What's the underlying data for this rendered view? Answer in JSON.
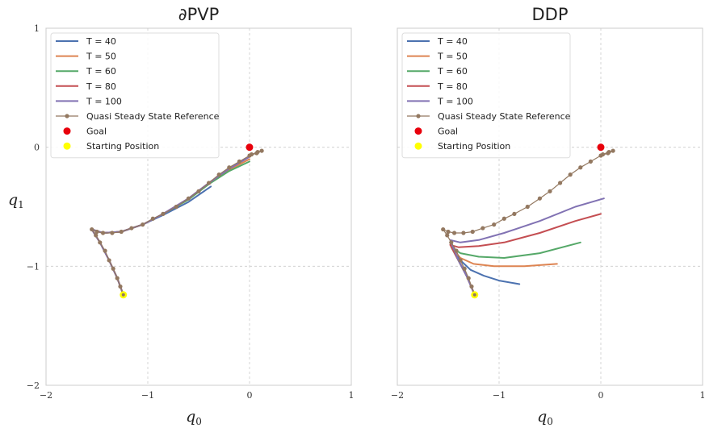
{
  "chart_data": [
    {
      "type": "line",
      "title": "∂PVP",
      "xlabel": "q",
      "xlabel_sub": "0",
      "ylabel": "q",
      "ylabel_sub": "1",
      "xlim": [
        -2,
        1
      ],
      "ylim": [
        -2,
        1
      ],
      "xticks": [
        -2,
        -1,
        0,
        1
      ],
      "yticks": [
        -2,
        -1,
        0,
        1
      ],
      "xtick_labels": [
        "−2",
        "−1",
        "0",
        "1"
      ],
      "ytick_labels": [
        "−2",
        "−1",
        "0",
        "1"
      ],
      "grid": true,
      "legend_position": "top-left",
      "series": [
        {
          "name": "T = 40",
          "color": "#4c72b0",
          "x": [
            -1.24,
            -1.3,
            -1.38,
            -1.47,
            -1.55,
            -1.44,
            -1.26,
            -1.05,
            -0.85,
            -0.6,
            -0.38
          ],
          "y": [
            -1.24,
            -1.1,
            -0.95,
            -0.8,
            -0.69,
            -0.72,
            -0.71,
            -0.65,
            -0.57,
            -0.46,
            -0.33
          ]
        },
        {
          "name": "T = 50",
          "color": "#dd8452",
          "x": [
            -1.24,
            -1.3,
            -1.38,
            -1.47,
            -1.55,
            -1.44,
            -1.26,
            -1.05,
            -0.85,
            -0.6,
            -0.4,
            -0.2,
            0.0
          ],
          "y": [
            -1.24,
            -1.1,
            -0.95,
            -0.8,
            -0.69,
            -0.72,
            -0.71,
            -0.65,
            -0.56,
            -0.44,
            -0.31,
            -0.19,
            -0.1
          ]
        },
        {
          "name": "T = 60",
          "color": "#55a868",
          "x": [
            -1.24,
            -1.3,
            -1.38,
            -1.47,
            -1.55,
            -1.44,
            -1.26,
            -1.05,
            -0.85,
            -0.6,
            -0.4,
            -0.2,
            0.0
          ],
          "y": [
            -1.24,
            -1.1,
            -0.95,
            -0.8,
            -0.69,
            -0.72,
            -0.71,
            -0.65,
            -0.56,
            -0.44,
            -0.31,
            -0.2,
            -0.12
          ]
        },
        {
          "name": "T = 80",
          "color": "#c44e52",
          "x": [
            -1.24,
            -1.3,
            -1.38,
            -1.47,
            -1.55,
            -1.44,
            -1.26,
            -1.05,
            -0.85,
            -0.6,
            -0.4,
            -0.2,
            0.0
          ],
          "y": [
            -1.24,
            -1.1,
            -0.95,
            -0.8,
            -0.69,
            -0.72,
            -0.71,
            -0.65,
            -0.56,
            -0.43,
            -0.3,
            -0.18,
            -0.08
          ]
        },
        {
          "name": "T = 100",
          "color": "#8172b3",
          "x": [
            -1.24,
            -1.3,
            -1.38,
            -1.47,
            -1.55,
            -1.44,
            -1.26,
            -1.05,
            -0.85,
            -0.6,
            -0.4,
            -0.2,
            0.0
          ],
          "y": [
            -1.24,
            -1.1,
            -0.95,
            -0.8,
            -0.69,
            -0.72,
            -0.71,
            -0.65,
            -0.56,
            -0.43,
            -0.3,
            -0.18,
            -0.08
          ]
        }
      ],
      "reference": {
        "name": "Quasi Steady State Reference",
        "color": "#937860",
        "x": [
          -1.24,
          -1.27,
          -1.3,
          -1.34,
          -1.38,
          -1.42,
          -1.47,
          -1.51,
          -1.55,
          -1.5,
          -1.44,
          -1.35,
          -1.26,
          -1.16,
          -1.05,
          -0.95,
          -0.85,
          -0.72,
          -0.6,
          -0.5,
          -0.4,
          -0.3,
          -0.2,
          -0.1,
          0.0,
          0.07,
          0.12,
          0.08,
          0.02
        ],
        "y": [
          -1.24,
          -1.17,
          -1.1,
          -1.02,
          -0.95,
          -0.87,
          -0.8,
          -0.74,
          -0.69,
          -0.71,
          -0.72,
          -0.72,
          -0.71,
          -0.68,
          -0.65,
          -0.6,
          -0.56,
          -0.5,
          -0.43,
          -0.37,
          -0.3,
          -0.23,
          -0.17,
          -0.12,
          -0.07,
          -0.05,
          -0.03,
          -0.04,
          -0.06
        ]
      },
      "goal": {
        "name": "Goal",
        "color": "#e8000b",
        "x": 0.0,
        "y": 0.0
      },
      "start": {
        "name": "Starting Position",
        "color": "#ffff00",
        "x": -1.24,
        "y": -1.24
      }
    },
    {
      "type": "line",
      "title": "DDP",
      "xlabel": "q",
      "xlabel_sub": "0",
      "ylabel": "",
      "ylabel_sub": "",
      "xlim": [
        -2,
        1
      ],
      "ylim": [
        -2,
        1
      ],
      "xticks": [
        -2,
        -1,
        0,
        1
      ],
      "yticks": [
        -2,
        -1,
        0,
        1
      ],
      "xtick_labels": [
        "−2",
        "−1",
        "0",
        "1"
      ],
      "ytick_labels": [],
      "grid": true,
      "legend_position": "top-left",
      "series": [
        {
          "name": "T = 40",
          "color": "#4c72b0",
          "x": [
            -1.24,
            -1.32,
            -1.4,
            -1.45,
            -1.38,
            -1.28,
            -1.15,
            -1.0,
            -0.8
          ],
          "y": [
            -1.24,
            -1.08,
            -0.95,
            -0.85,
            -0.95,
            -1.03,
            -1.08,
            -1.12,
            -1.15
          ]
        },
        {
          "name": "T = 50",
          "color": "#dd8452",
          "x": [
            -1.24,
            -1.32,
            -1.4,
            -1.46,
            -1.38,
            -1.25,
            -1.05,
            -0.75,
            -0.43
          ],
          "y": [
            -1.24,
            -1.08,
            -0.95,
            -0.85,
            -0.93,
            -0.98,
            -1.0,
            -1.0,
            -0.98
          ]
        },
        {
          "name": "T = 60",
          "color": "#55a868",
          "x": [
            -1.24,
            -1.32,
            -1.4,
            -1.47,
            -1.38,
            -1.2,
            -0.95,
            -0.6,
            -0.2
          ],
          "y": [
            -1.24,
            -1.08,
            -0.95,
            -0.84,
            -0.89,
            -0.92,
            -0.93,
            -0.89,
            -0.8
          ]
        },
        {
          "name": "T = 80",
          "color": "#c44e52",
          "x": [
            -1.24,
            -1.32,
            -1.4,
            -1.48,
            -1.4,
            -1.2,
            -0.95,
            -0.6,
            -0.25,
            0.0
          ],
          "y": [
            -1.24,
            -1.08,
            -0.95,
            -0.82,
            -0.84,
            -0.83,
            -0.8,
            -0.72,
            -0.62,
            -0.56
          ]
        },
        {
          "name": "T = 100",
          "color": "#8172b3",
          "x": [
            -1.24,
            -1.32,
            -1.4,
            -1.48,
            -1.38,
            -1.2,
            -0.95,
            -0.6,
            -0.25,
            0.03
          ],
          "y": [
            -1.24,
            -1.08,
            -0.95,
            -0.78,
            -0.8,
            -0.78,
            -0.72,
            -0.62,
            -0.5,
            -0.43
          ]
        }
      ],
      "reference": {
        "name": "Quasi Steady State Reference",
        "color": "#937860",
        "x": [
          -1.24,
          -1.27,
          -1.3,
          -1.34,
          -1.38,
          -1.42,
          -1.47,
          -1.51,
          -1.55,
          -1.5,
          -1.44,
          -1.35,
          -1.26,
          -1.16,
          -1.05,
          -0.95,
          -0.85,
          -0.72,
          -0.6,
          -0.5,
          -0.4,
          -0.3,
          -0.2,
          -0.1,
          0.0,
          0.07,
          0.12,
          0.08,
          0.02
        ],
        "y": [
          -1.24,
          -1.17,
          -1.1,
          -1.02,
          -0.95,
          -0.87,
          -0.8,
          -0.74,
          -0.69,
          -0.71,
          -0.72,
          -0.72,
          -0.71,
          -0.68,
          -0.65,
          -0.6,
          -0.56,
          -0.5,
          -0.43,
          -0.37,
          -0.3,
          -0.23,
          -0.17,
          -0.12,
          -0.07,
          -0.05,
          -0.03,
          -0.04,
          -0.06
        ]
      },
      "goal": {
        "name": "Goal",
        "color": "#e8000b",
        "x": 0.0,
        "y": 0.0
      },
      "start": {
        "name": "Starting Position",
        "color": "#ffff00",
        "x": -1.24,
        "y": -1.24
      }
    }
  ]
}
